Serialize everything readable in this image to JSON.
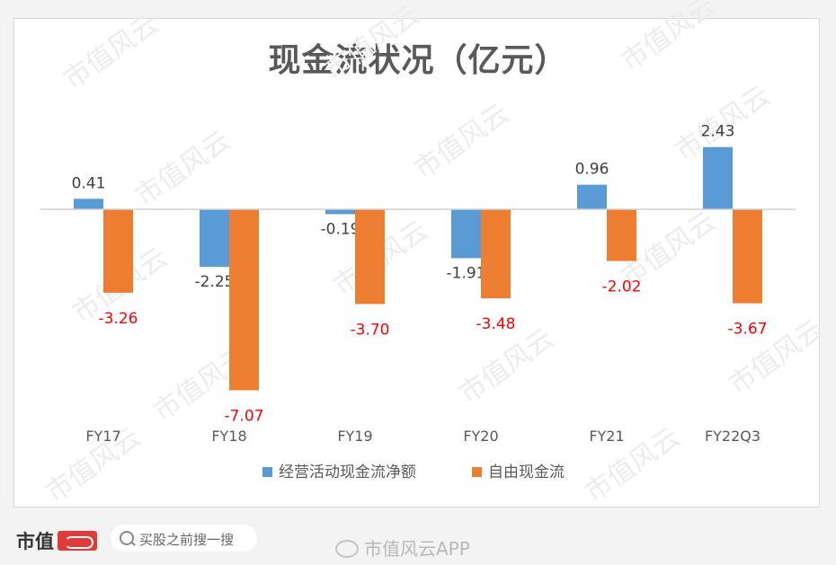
{
  "chart_data": {
    "type": "bar",
    "title": "现金流状况（亿元）",
    "categories": [
      "FY17",
      "FY18",
      "FY19",
      "FY20",
      "FY21",
      "FY22Q3"
    ],
    "series": [
      {
        "name": "经营活动现金流净额",
        "values": [
          0.41,
          -2.25,
          -0.19,
          -1.91,
          0.96,
          2.43
        ],
        "color": "#5b9bd5",
        "label_color": "#404040"
      },
      {
        "name": "自由现金流",
        "values": [
          -3.26,
          -7.07,
          -3.7,
          -3.48,
          -2.02,
          -3.67
        ],
        "color": "#ed7d31",
        "label_color": "#ff0000"
      }
    ],
    "value_labels": [
      [
        "0.41",
        "-2.25",
        "-0.19",
        "-1.91",
        "0.96",
        "2.43"
      ],
      [
        "-3.26",
        "-7.07",
        "-3.70",
        "-3.48",
        "-2.02",
        "-3.67"
      ]
    ],
    "legend_position": "bottom",
    "grid": false
  },
  "watermark": "市值风云",
  "footer": {
    "brand": "市值",
    "search_placeholder": "买股之前搜一搜",
    "app_watermark": "市值风云APP"
  }
}
